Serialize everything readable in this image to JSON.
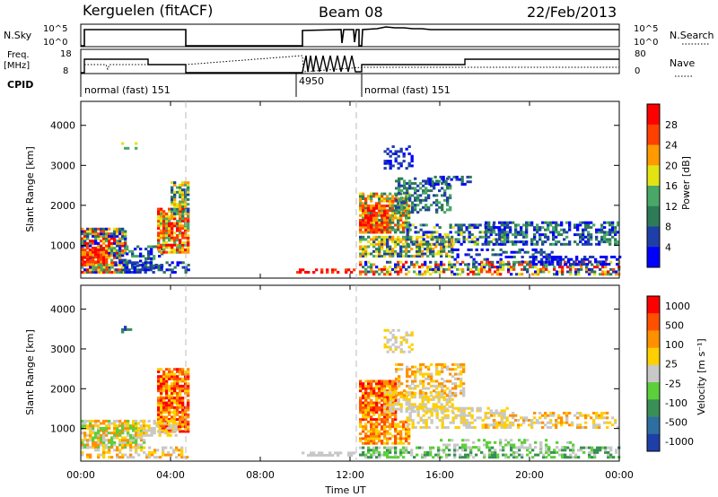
{
  "header": {
    "station": "Kerguelen (fitACF)",
    "beam": "Beam 08",
    "date": "22/Feb/2013"
  },
  "sky_panel": {
    "left_label": "N.Sky",
    "right_label": "N.Search",
    "left_ticks": [
      "10^5",
      "10^0"
    ],
    "right_ticks": [
      "10^5",
      "10^0"
    ]
  },
  "freq_panel": {
    "left_label_line1": "Freq.",
    "left_label_line2": "[MHz]",
    "right_label": "Nave",
    "left_ticks": [
      "18",
      "8"
    ],
    "right_ticks": [
      "80",
      "0"
    ]
  },
  "cpid": {
    "label": "CPID",
    "segments": [
      {
        "start": 0.0,
        "end": 9.1,
        "text": "normal (fast) 151"
      },
      {
        "start": 9.1,
        "end": 12.3,
        "text": "4950"
      },
      {
        "start": 12.3,
        "end": 24.0,
        "text": "normal (fast) 151"
      }
    ]
  },
  "chart_data": [
    {
      "type": "heatmap",
      "title": "Power",
      "ylabel": "Slant Range [km]",
      "ylim": [
        180,
        4600
      ],
      "xlim": [
        0,
        24
      ],
      "yticks": [
        "1000",
        "2000",
        "3000",
        "4000"
      ],
      "colorbar_label": "Power [dB]",
      "colorbar_ticks": [
        "28",
        "24",
        "20",
        "16",
        "12",
        "8",
        "4"
      ],
      "colors": [
        "#0000ff",
        "#1f3fa8",
        "#2e7b58",
        "#4aa866",
        "#e3e314",
        "#ff9a00",
        "#ff4000",
        "#ff0000"
      ]
    },
    {
      "type": "heatmap",
      "title": "Velocity",
      "ylabel": "Slant Range [km]",
      "ylim": [
        180,
        4600
      ],
      "xlim": [
        0,
        24
      ],
      "yticks": [
        "1000",
        "2000",
        "3000",
        "4000"
      ],
      "colorbar_label": "Velocity [m s⁻¹]",
      "colorbar_ticks": [
        "1000",
        "500",
        "100",
        "25",
        "-25",
        "-100",
        "-500",
        "-1000"
      ],
      "colors": [
        "#1f3fa8",
        "#2d6fa0",
        "#3a8f56",
        "#5ccf3a",
        "#c8c8c8",
        "#ffd000",
        "#ff9000",
        "#ff5000",
        "#ff0000"
      ]
    }
  ],
  "xaxis": {
    "label": "Time UT",
    "ticks": [
      "00:00",
      "04:00",
      "08:00",
      "12:00",
      "16:00",
      "20:00",
      "00:00"
    ]
  }
}
